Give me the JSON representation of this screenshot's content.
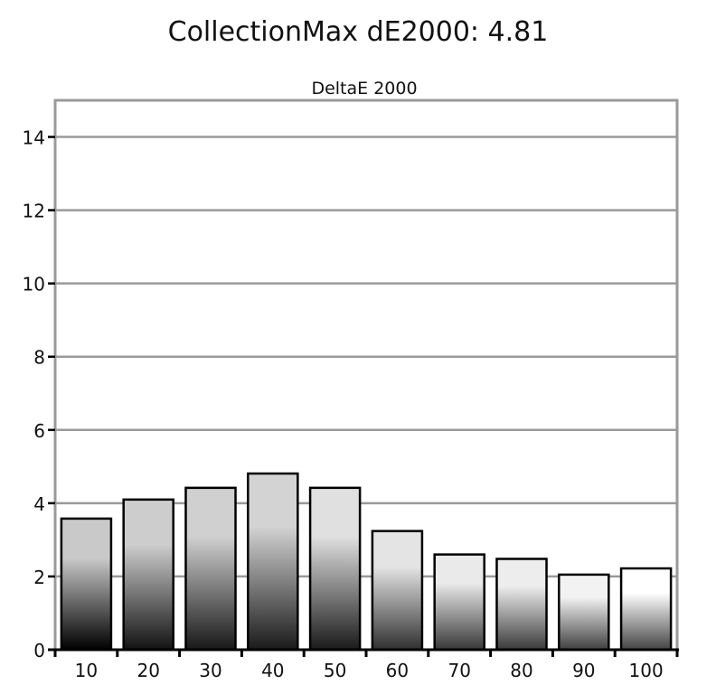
{
  "title": "CollectionMax dE2000: 4.81",
  "chart_data": {
    "type": "bar",
    "subtitle": "DeltaE 2000",
    "categories": [
      "10",
      "20",
      "30",
      "40",
      "50",
      "60",
      "70",
      "80",
      "90",
      "100"
    ],
    "values": [
      3.58,
      4.1,
      4.42,
      4.81,
      4.42,
      3.24,
      2.6,
      2.48,
      2.05,
      2.22
    ],
    "ylim": [
      0,
      15
    ],
    "yticks": [
      0,
      2,
      4,
      6,
      8,
      10,
      12,
      14
    ],
    "grid": true,
    "legend": "none",
    "bar_top_shade": [
      "#c9c9c9",
      "#cdcdcd",
      "#d0d0d0",
      "#d3d3d3",
      "#e0e0e0",
      "#e4e4e4",
      "#eaeaea",
      "#ededed",
      "#f2f2f2",
      "#ffffff"
    ],
    "bar_bottom_shade": [
      "#000000",
      "#121212",
      "#181818",
      "#1a1a1a",
      "#1a1a1a",
      "#303030",
      "#383838",
      "#3a3a3a",
      "#404040",
      "#444444"
    ]
  }
}
